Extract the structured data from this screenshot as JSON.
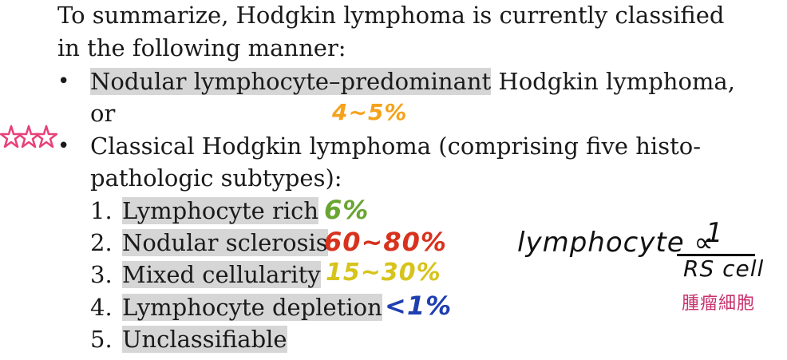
{
  "intro": {
    "line1": "To summarize, Hodgkin lymphoma is currently classified",
    "line2": "in the following manner:"
  },
  "bullets": [
    {
      "highlight": "Nodular lymphocyte–predominant",
      "rest": " Hodgkin lymphoma,",
      "cont": "or"
    },
    {
      "line1": "Classical Hodgkin lymphoma (comprising five histo-",
      "line2": "pathologic subtypes):"
    }
  ],
  "subtypes": [
    {
      "num": "1.",
      "label": "Lymphocyte rich"
    },
    {
      "num": "2.",
      "label": "Nodular sclerosis"
    },
    {
      "num": "3.",
      "label": "Mixed cellularity"
    },
    {
      "num": "4.",
      "label": "Lymphocyte depletion"
    },
    {
      "num": "5.",
      "label": "Unclassifiable"
    }
  ],
  "annotations": {
    "nodular_percent": "4~5%",
    "rich_percent": "6%",
    "sclerosis_percent": "60~80%",
    "mixed_percent": "15~30%",
    "depletion_percent": "<1%",
    "formula_lhs": "lymphocyte ∝",
    "formula_num": "1",
    "formula_den": "RS cell",
    "formula_note": "腫瘤細胞"
  },
  "colors": {
    "orange": "#f5a21b",
    "green": "#6aa532",
    "red": "#d8321e",
    "yellow": "#d6c41c",
    "blue": "#1f3fb0",
    "magenta": "#c8326e",
    "stars": "#e8407a"
  }
}
